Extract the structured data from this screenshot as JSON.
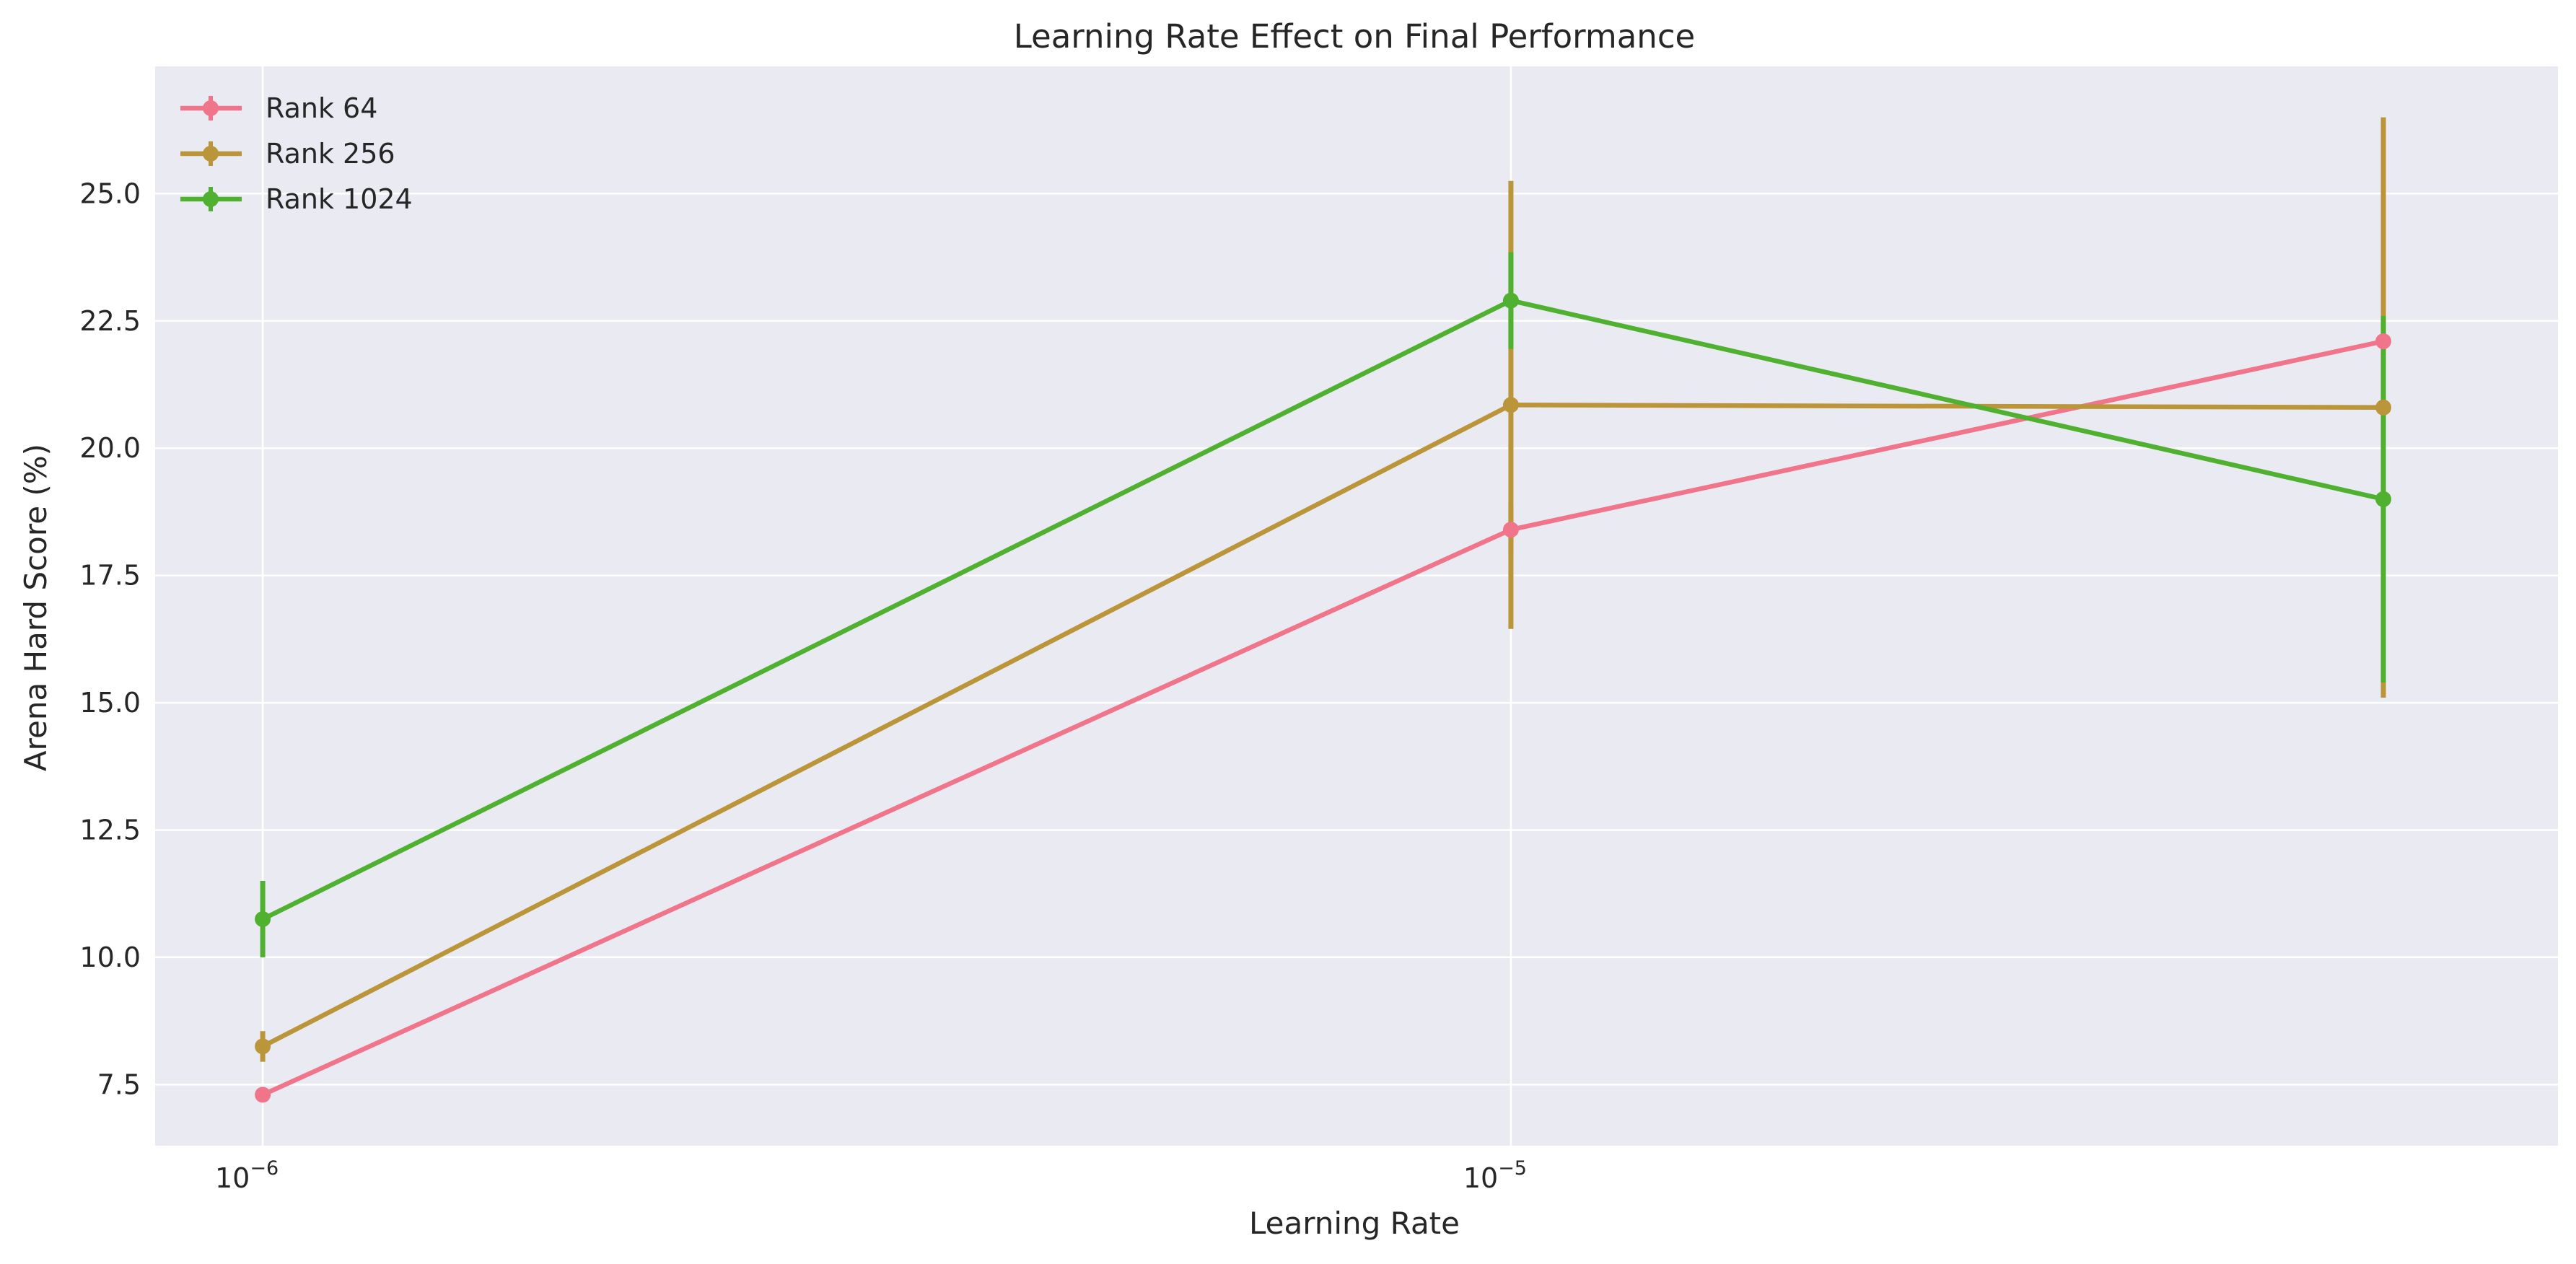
{
  "chart_data": {
    "type": "line",
    "title": "Learning Rate Effect on Final Performance",
    "xlabel": "Learning Rate",
    "ylabel": "Arena Hard Score (%)",
    "xscale": "log",
    "xlim": [
      8.2e-07,
      6.9e-05
    ],
    "ylim": [
      6.3,
      27.5
    ],
    "x_ticks": [
      {
        "value": 1e-06,
        "base": "10",
        "exp": "−6"
      },
      {
        "value": 1e-05,
        "base": "10",
        "exp": "−5"
      }
    ],
    "y_ticks": [
      7.5,
      10.0,
      12.5,
      15.0,
      17.5,
      20.0,
      22.5,
      25.0
    ],
    "y_tick_labels": [
      "7.5",
      "10.0",
      "12.5",
      "15.0",
      "17.5",
      "20.0",
      "22.5",
      "25.0"
    ],
    "grid": true,
    "legend_position": "top-left",
    "x": [
      1e-06,
      1e-05,
      5e-05
    ],
    "series": [
      {
        "name": "Rank 64",
        "color": "#f0758a",
        "values": [
          7.3,
          18.4,
          22.1
        ],
        "errors": [
          0.1,
          0.5,
          0.5
        ]
      },
      {
        "name": "Rank 256",
        "color": "#bb9539",
        "values": [
          8.25,
          20.85,
          20.8
        ],
        "errors": [
          0.3,
          4.4,
          5.7
        ]
      },
      {
        "name": "Rank 1024",
        "color": "#50b131",
        "values": [
          10.75,
          22.9,
          19.0
        ],
        "errors": [
          0.75,
          0.95,
          3.6
        ]
      }
    ]
  }
}
